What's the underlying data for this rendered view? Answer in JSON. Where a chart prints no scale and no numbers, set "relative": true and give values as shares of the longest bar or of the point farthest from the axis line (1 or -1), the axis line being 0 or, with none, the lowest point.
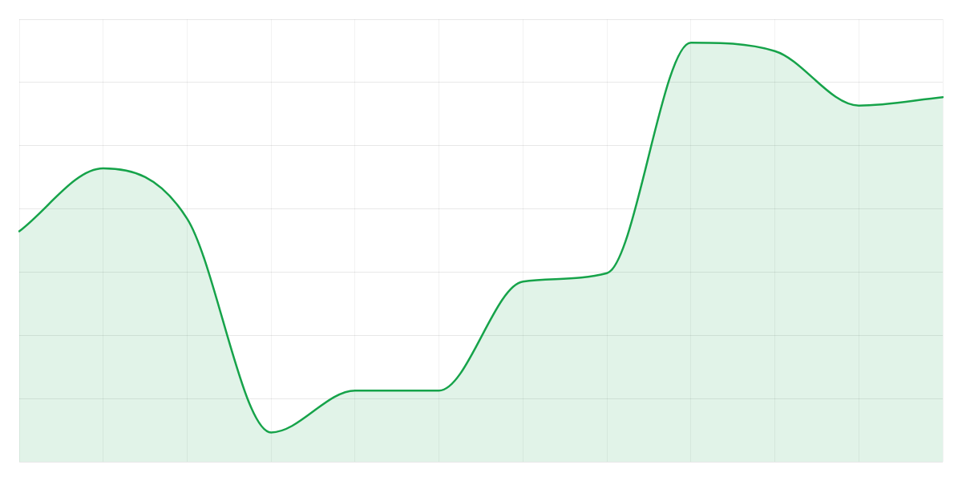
{
  "chart_data": {
    "type": "area",
    "relative": true,
    "categories": [
      null,
      null,
      null,
      null,
      null,
      null,
      null,
      null,
      null,
      null,
      null,
      null
    ],
    "series": [
      {
        "color": "#16a34a",
        "values": [
          0.55,
          0.7,
          0.58,
          0.07,
          0.17,
          0.17,
          0.43,
          0.45,
          1,
          0.98,
          0.85,
          0.87
        ]
      }
    ],
    "grid": true
  }
}
